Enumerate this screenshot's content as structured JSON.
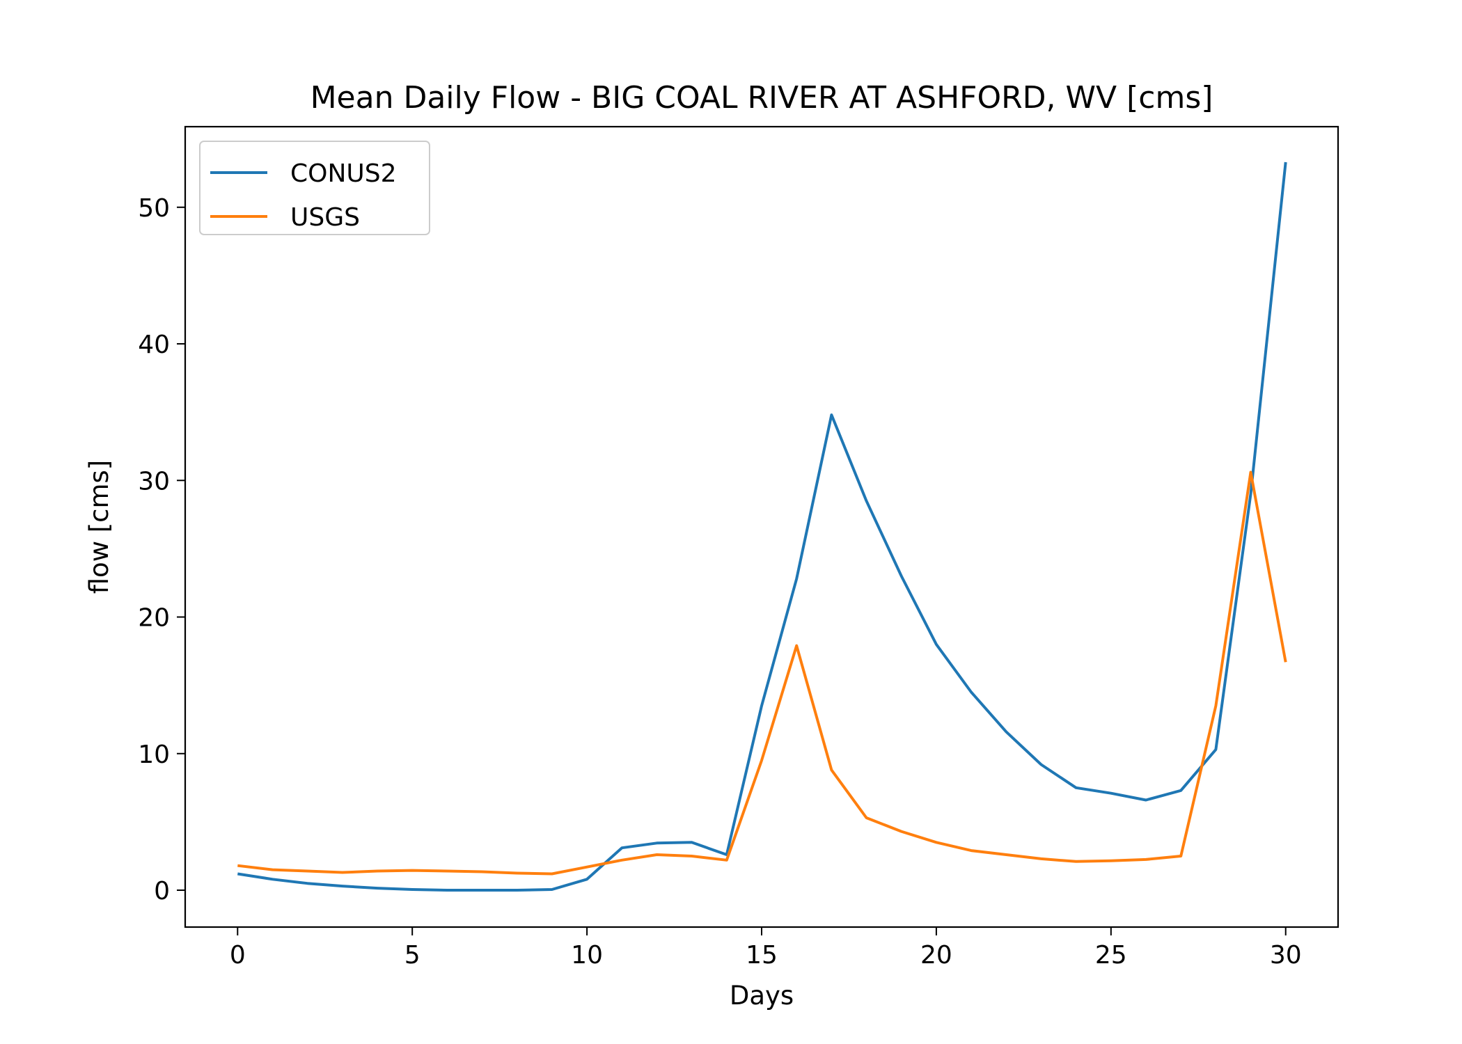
{
  "chart_data": {
    "type": "line",
    "title": "Mean Daily Flow - BIG COAL RIVER AT ASHFORD, WV [cms]",
    "xlabel": "Days",
    "ylabel": "flow [cms]",
    "xlim": [
      -1.5,
      31.5
    ],
    "ylim": [
      -2.7,
      55.9
    ],
    "xticks": [
      0,
      5,
      10,
      15,
      20,
      25,
      30
    ],
    "yticks": [
      0,
      10,
      20,
      30,
      40,
      50
    ],
    "grid": false,
    "legend": "top-left",
    "x": [
      0,
      1,
      2,
      3,
      4,
      5,
      6,
      7,
      8,
      9,
      10,
      11,
      12,
      13,
      14,
      15,
      16,
      17,
      18,
      19,
      20,
      21,
      22,
      23,
      24,
      25,
      26,
      27,
      28,
      29,
      30
    ],
    "series": [
      {
        "name": "CONUS2",
        "color": "#1f77b4",
        "values": [
          1.2,
          0.8,
          0.5,
          0.3,
          0.15,
          0.05,
          0.0,
          0.0,
          0.0,
          0.05,
          0.8,
          3.1,
          3.45,
          3.5,
          2.6,
          13.5,
          22.8,
          34.8,
          28.5,
          23.0,
          18.0,
          14.5,
          11.6,
          9.2,
          7.5,
          7.1,
          6.6,
          7.3,
          10.3,
          29.0,
          53.3
        ]
      },
      {
        "name": "USGS",
        "color": "#ff7f0e",
        "values": [
          1.8,
          1.5,
          1.4,
          1.3,
          1.4,
          1.45,
          1.4,
          1.35,
          1.25,
          1.2,
          1.7,
          2.2,
          2.6,
          2.5,
          2.2,
          9.5,
          17.9,
          8.8,
          5.3,
          4.3,
          3.5,
          2.9,
          2.6,
          2.3,
          2.1,
          2.15,
          2.25,
          2.5,
          13.5,
          30.6,
          16.7
        ]
      }
    ]
  }
}
